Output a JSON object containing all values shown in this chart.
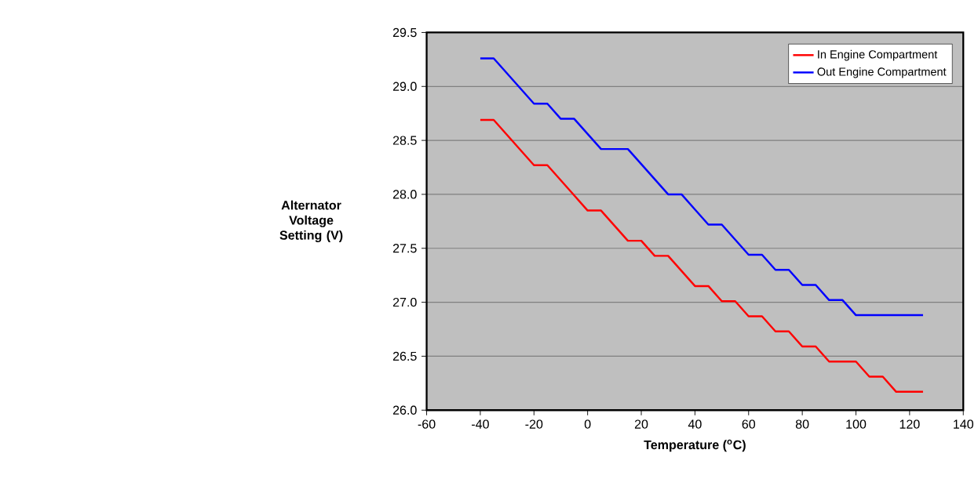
{
  "chart_data": {
    "type": "line",
    "xlabel": "Temperature ($^{o}$C)",
    "ylabel": "Alternator Voltage Setting (V)",
    "x": [
      -40,
      -35,
      -30,
      -25,
      -20,
      -15,
      -10,
      -5,
      0,
      5,
      10,
      15,
      20,
      25,
      30,
      35,
      40,
      45,
      50,
      55,
      60,
      65,
      70,
      75,
      80,
      85,
      90,
      95,
      100,
      105,
      110,
      115,
      120,
      125
    ],
    "series": [
      {
        "name": "In Engine Compartment",
        "color": "#ff0000",
        "values": [
          28.69,
          28.69,
          28.55,
          28.41,
          28.27,
          28.27,
          28.13,
          27.99,
          27.85,
          27.85,
          27.71,
          27.57,
          27.57,
          27.43,
          27.43,
          27.29,
          27.15,
          27.15,
          27.01,
          27.01,
          26.87,
          26.87,
          26.73,
          26.73,
          26.59,
          26.59,
          26.45,
          26.45,
          26.45,
          26.31,
          26.31,
          26.17,
          26.17,
          26.17
        ]
      },
      {
        "name": "Out Engine Compartment",
        "color": "#0000ff",
        "values": [
          29.26,
          29.26,
          29.12,
          28.98,
          28.84,
          28.84,
          28.7,
          28.7,
          28.56,
          28.42,
          28.42,
          28.42,
          28.28,
          28.14,
          28.0,
          28.0,
          27.86,
          27.72,
          27.72,
          27.58,
          27.44,
          27.44,
          27.3,
          27.3,
          27.16,
          27.16,
          27.02,
          27.02,
          26.88,
          26.88,
          26.88,
          26.88,
          26.88,
          26.88
        ]
      }
    ],
    "xlim": [
      -60,
      140
    ],
    "xticks": [
      -60,
      -40,
      -20,
      0,
      20,
      40,
      60,
      80,
      100,
      120,
      140
    ],
    "ylim": [
      26.0,
      29.5
    ],
    "yticks": [
      {
        "value": 26.0,
        "label": "26.0"
      },
      {
        "value": 26.5,
        "label": "26.5"
      },
      {
        "value": 27.0,
        "label": "27.0"
      },
      {
        "value": 27.5,
        "label": "27.5"
      },
      {
        "value": 28.0,
        "label": "28.0"
      },
      {
        "value": 28.5,
        "label": "28.5"
      },
      {
        "value": 29.0,
        "label": "29.0"
      },
      {
        "value": 29.5,
        "label": "29.5"
      }
    ],
    "grid": "y",
    "legend": "top right",
    "marker": "none",
    "line_style": "solid"
  }
}
